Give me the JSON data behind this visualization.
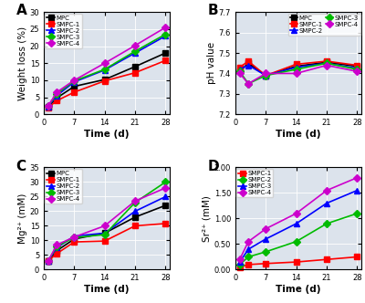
{
  "time": [
    1,
    3,
    7,
    14,
    21,
    28
  ],
  "panel_A": {
    "title": "A",
    "ylabel": "Weight loss (%)",
    "xlabel": "Time (d)",
    "ylim": [
      0,
      30
    ],
    "yticks": [
      0,
      5,
      10,
      15,
      20,
      25,
      30
    ],
    "xticks": [
      0,
      7,
      14,
      21,
      28
    ],
    "xlim": [
      0,
      29
    ],
    "series": {
      "MPC": {
        "color": "#000000",
        "marker": "s",
        "data": [
          2.2,
          4.8,
          8.2,
          10.2,
          14.0,
          18.0
        ]
      },
      "SMPC-1": {
        "color": "#ff0000",
        "marker": "s",
        "data": [
          2.0,
          4.0,
          6.5,
          9.8,
          12.2,
          15.8
        ]
      },
      "SMPC-2": {
        "color": "#0000ff",
        "marker": "^",
        "data": [
          2.3,
          5.5,
          9.5,
          13.0,
          18.0,
          23.0
        ]
      },
      "SMPC-3": {
        "color": "#00bb00",
        "marker": "D",
        "data": [
          2.4,
          6.0,
          9.8,
          13.2,
          18.5,
          23.5
        ]
      },
      "SMPC-4": {
        "color": "#cc00cc",
        "marker": "D",
        "data": [
          2.5,
          6.5,
          10.0,
          15.0,
          20.2,
          25.5
        ]
      }
    }
  },
  "panel_B": {
    "title": "B",
    "ylabel": "pH value",
    "xlabel": "Time (d)",
    "ylim": [
      7.2,
      7.7
    ],
    "yticks": [
      7.2,
      7.3,
      7.4,
      7.5,
      7.6,
      7.7
    ],
    "xticks": [
      0,
      7,
      14,
      21,
      28
    ],
    "xlim": [
      0,
      29
    ],
    "series": {
      "MPC": {
        "color": "#000000",
        "marker": "s",
        "data": [
          7.41,
          7.45,
          7.39,
          7.435,
          7.455,
          7.435
        ]
      },
      "SMPC-1": {
        "color": "#ff0000",
        "marker": "s",
        "data": [
          7.43,
          7.46,
          7.39,
          7.445,
          7.46,
          7.44
        ]
      },
      "SMPC-2": {
        "color": "#0000ff",
        "marker": "^",
        "data": [
          7.42,
          7.44,
          7.39,
          7.43,
          7.45,
          7.425
        ]
      },
      "SMPC-3": {
        "color": "#00bb00",
        "marker": "D",
        "data": [
          7.41,
          7.35,
          7.39,
          7.42,
          7.45,
          7.42
        ]
      },
      "SMPC-4": {
        "color": "#cc00cc",
        "marker": "D",
        "data": [
          7.4,
          7.35,
          7.4,
          7.4,
          7.44,
          7.41
        ]
      }
    }
  },
  "panel_C": {
    "title": "C",
    "ylabel": "Mg²⁺ (mM)",
    "xlabel": "Time (d)",
    "ylim": [
      0,
      35
    ],
    "yticks": [
      0,
      5,
      10,
      15,
      20,
      25,
      30,
      35
    ],
    "xticks": [
      0,
      7,
      14,
      21,
      28
    ],
    "xlim": [
      0,
      29
    ],
    "series": {
      "MPC": {
        "color": "#000000",
        "marker": "s",
        "data": [
          3.0,
          6.5,
          10.5,
          12.5,
          18.0,
          22.0
        ]
      },
      "SMPC-1": {
        "color": "#ff0000",
        "marker": "s",
        "data": [
          3.0,
          5.5,
          9.5,
          9.8,
          15.0,
          15.8
        ]
      },
      "SMPC-2": {
        "color": "#0000ff",
        "marker": "^",
        "data": [
          3.0,
          7.5,
          11.5,
          12.5,
          20.0,
          25.0
        ]
      },
      "SMPC-3": {
        "color": "#00bb00",
        "marker": "D",
        "data": [
          3.0,
          8.0,
          11.0,
          12.0,
          23.0,
          30.0
        ]
      },
      "SMPC-4": {
        "color": "#cc00cc",
        "marker": "D",
        "data": [
          3.0,
          8.5,
          11.2,
          15.0,
          23.5,
          28.0
        ]
      }
    }
  },
  "panel_D": {
    "title": "D",
    "ylabel": "Sr²⁺ (mM)",
    "xlabel": "Time (d)",
    "ylim": [
      0,
      2.0
    ],
    "yticks": [
      0.0,
      0.5,
      1.0,
      1.5,
      2.0
    ],
    "ytick_labels": [
      "0.00",
      "0.50",
      "1.00",
      "1.50",
      "2.00"
    ],
    "xticks": [
      0,
      7,
      14,
      21,
      28
    ],
    "xlim": [
      0,
      29
    ],
    "series": {
      "SMPC-1": {
        "color": "#ff0000",
        "marker": "s",
        "data": [
          0.05,
          0.1,
          0.12,
          0.15,
          0.2,
          0.25
        ]
      },
      "SMPC-2": {
        "color": "#00bb00",
        "marker": "D",
        "data": [
          0.1,
          0.25,
          0.35,
          0.55,
          0.9,
          1.1
        ]
      },
      "SMPC-3": {
        "color": "#0000ff",
        "marker": "^",
        "data": [
          0.15,
          0.4,
          0.6,
          0.9,
          1.3,
          1.55
        ]
      },
      "SMPC-4": {
        "color": "#cc00cc",
        "marker": "D",
        "data": [
          0.2,
          0.55,
          0.8,
          1.1,
          1.55,
          1.8
        ]
      }
    }
  },
  "bg_color": "#dce3ec",
  "line_width": 1.2,
  "marker_size": 4,
  "font_size": 6.5,
  "label_font_size": 7.5,
  "tick_font_size": 6
}
